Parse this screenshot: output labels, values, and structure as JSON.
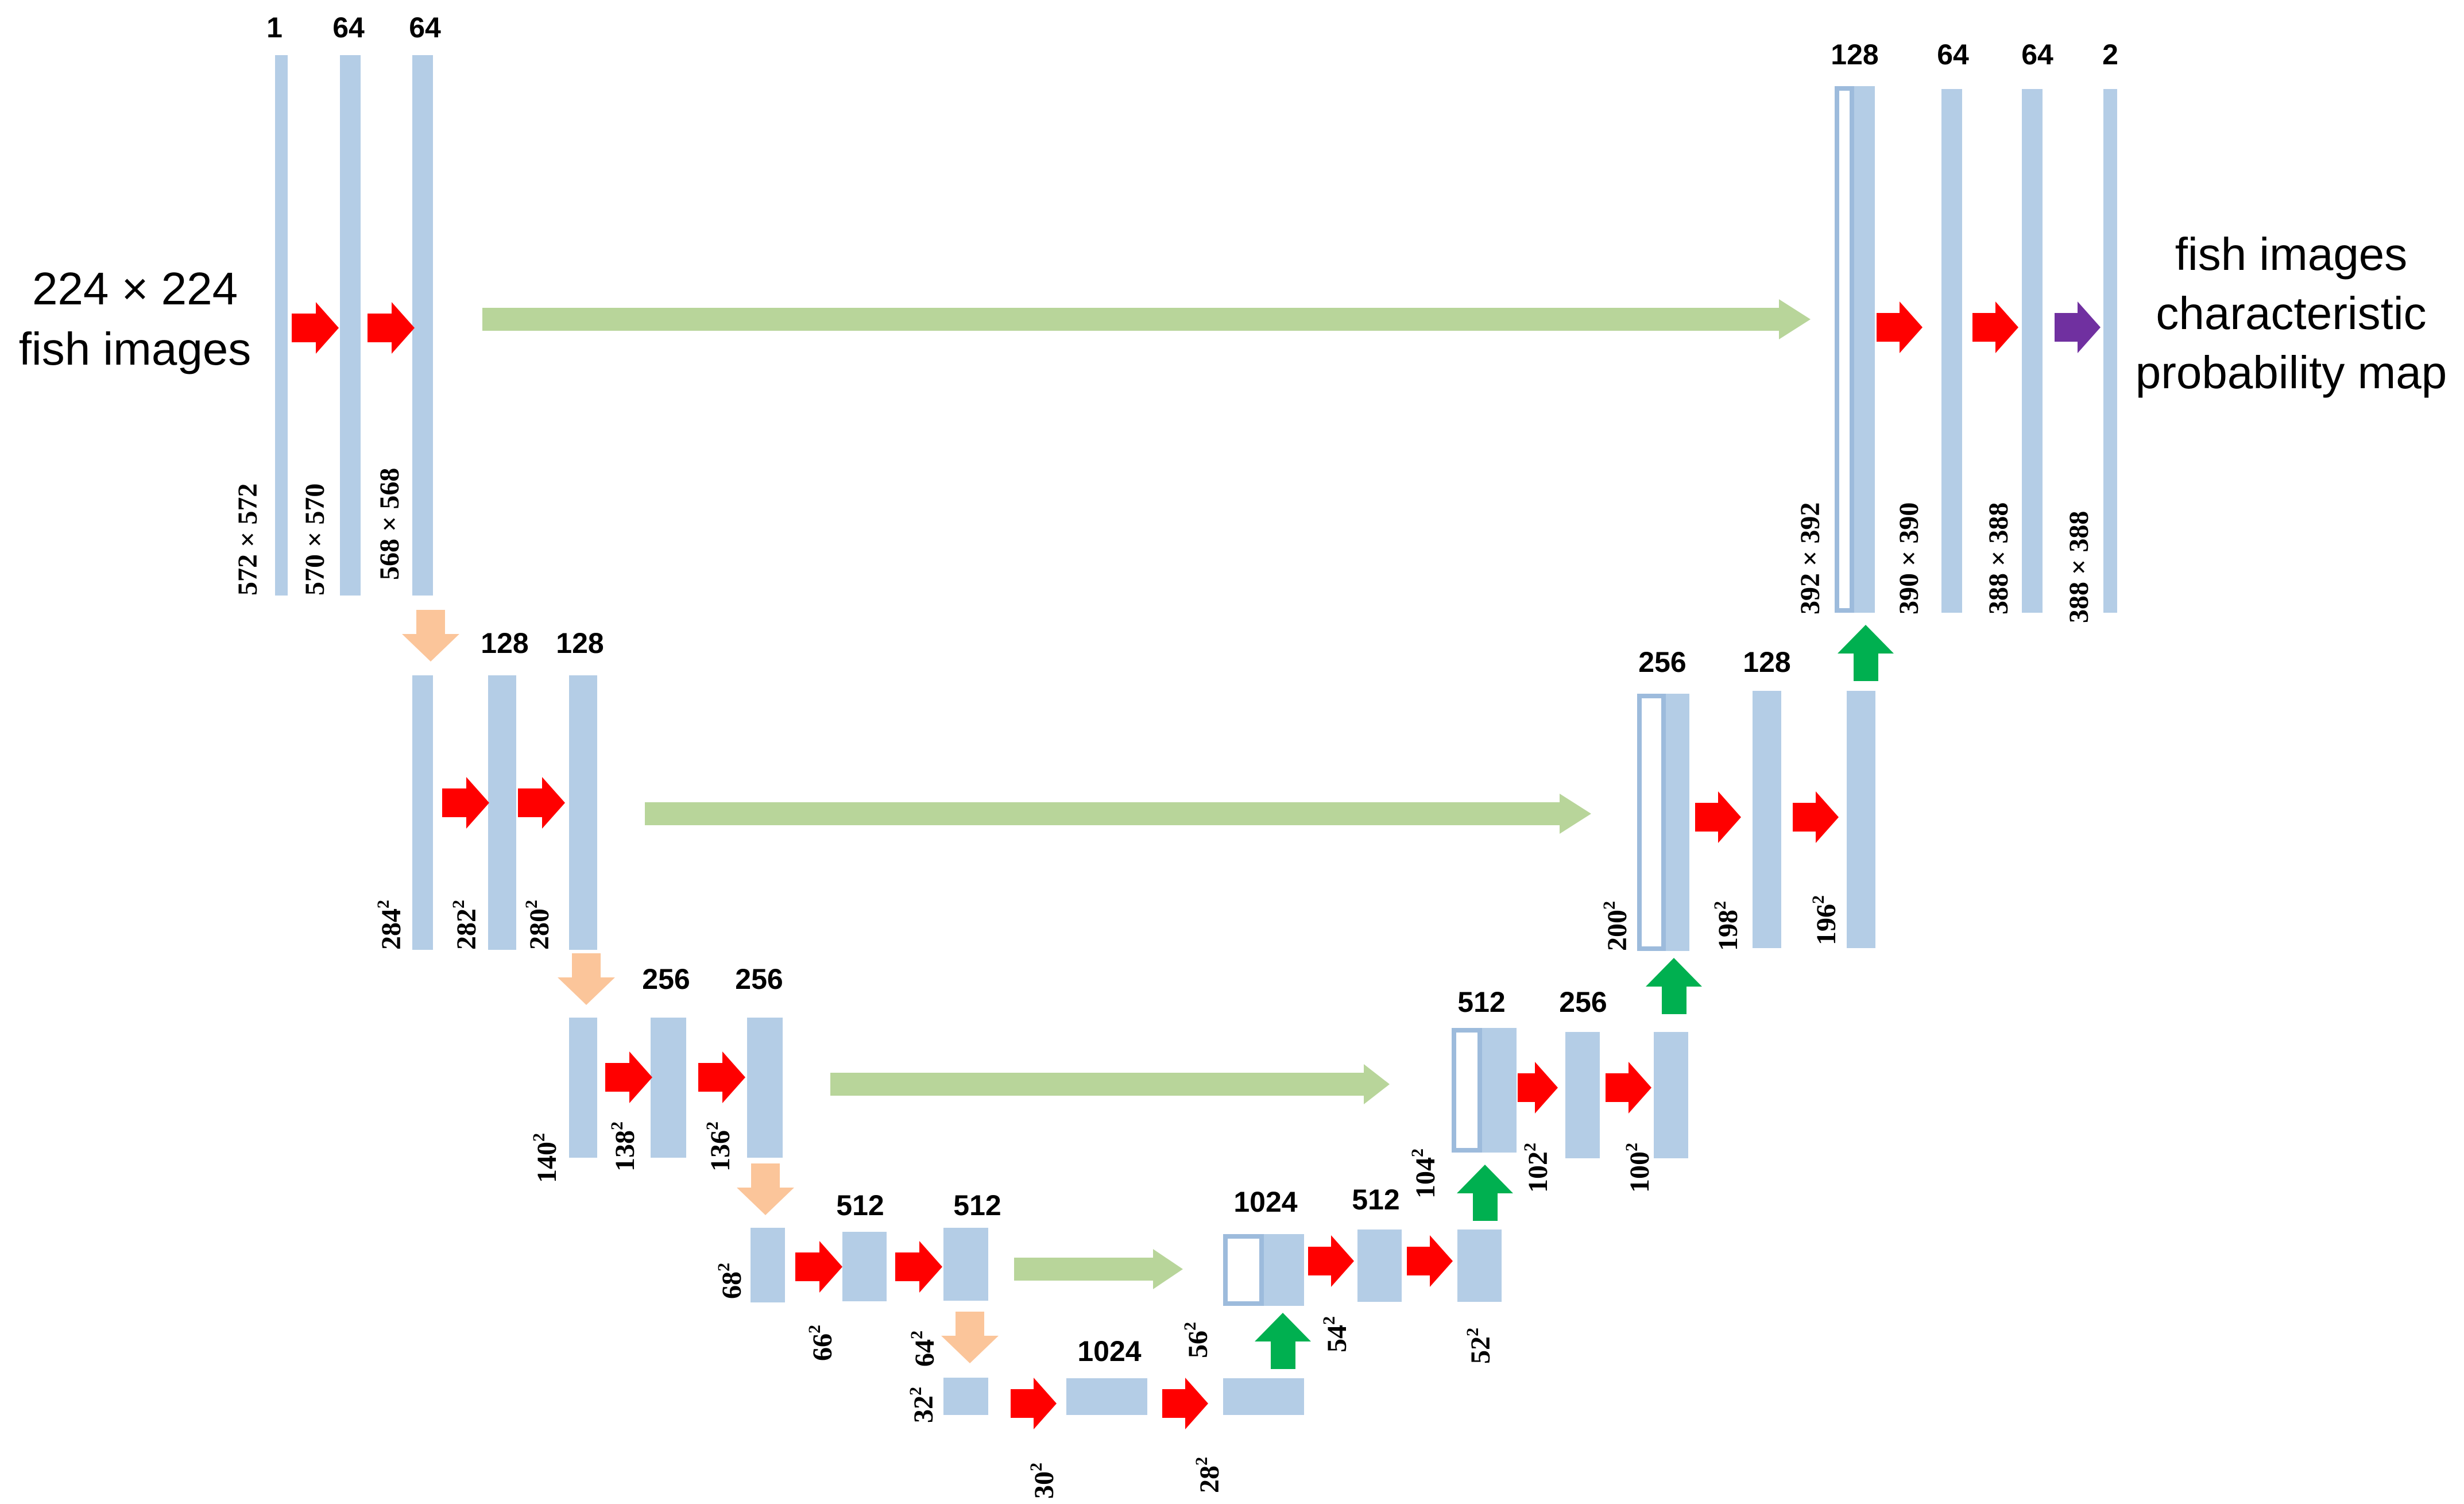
{
  "colors": {
    "block": "#b4cde6",
    "block_outline": "#9dbbdc",
    "conv_arrow": "#ff0000",
    "pool_arrow": "#fbc59a",
    "upconv_arrow": "#00b050",
    "skip_arrow": "#b8d59a",
    "output_arrow": "#7030a0"
  },
  "input_label": [
    "224 × 224",
    "fish images"
  ],
  "output_label": [
    "fish images",
    "characteristic",
    "probability map"
  ],
  "channels": {
    "e1": [
      "1",
      "64",
      "64"
    ],
    "e2": [
      "128",
      "128"
    ],
    "e3": [
      "256",
      "256"
    ],
    "e4": [
      "512",
      "512"
    ],
    "bottom": [
      "1024"
    ],
    "d4": [
      "1024",
      "512"
    ],
    "d3": [
      "512",
      "256"
    ],
    "d2": [
      "256",
      "128"
    ],
    "d1": [
      "128",
      "64",
      "64",
      "2"
    ]
  },
  "sizes": {
    "e1": [
      "572 × 572",
      "570 × 570",
      "568 × 568"
    ],
    "e2": [
      "284",
      "282",
      "280"
    ],
    "e3": [
      "140",
      "138",
      "136"
    ],
    "e4": [
      "68",
      "66",
      "64"
    ],
    "bottom": [
      "32",
      "30",
      "28"
    ],
    "d4": [
      "56",
      "54",
      "52"
    ],
    "d3": [
      "104",
      "102",
      "100"
    ],
    "d2": [
      "200",
      "198",
      "196"
    ],
    "d1": [
      "392 × 392",
      "390 × 390",
      "388 × 388",
      "388 × 388"
    ]
  },
  "sq": "2"
}
